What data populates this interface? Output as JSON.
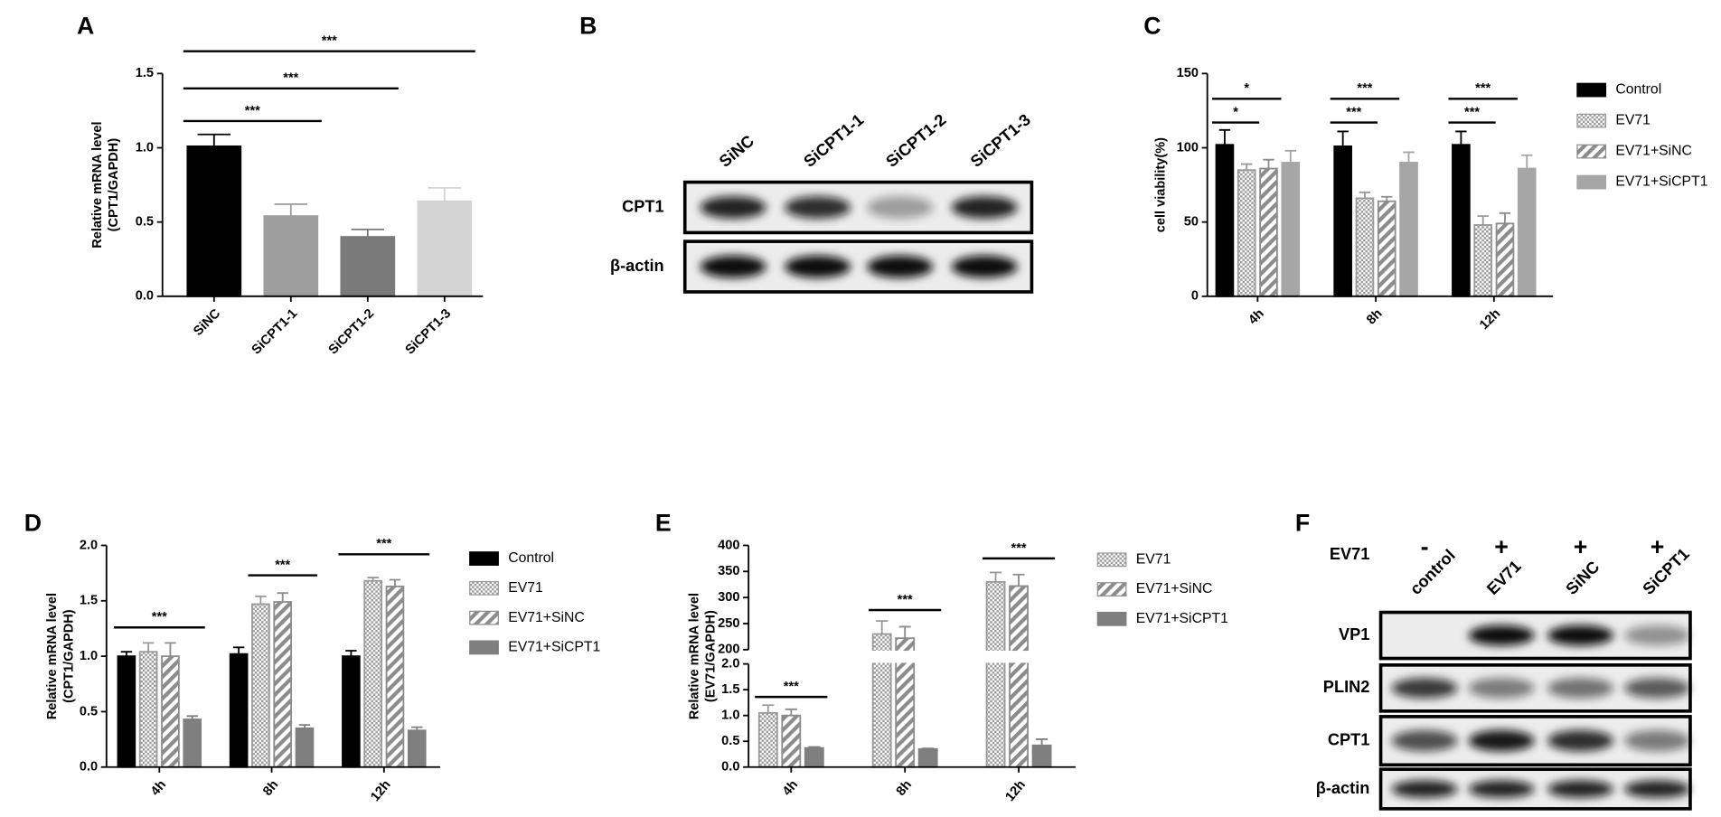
{
  "chart_data": [
    {
      "panel": "A",
      "type": "bar",
      "ylabel": [
        "Relative mRNA level",
        "(CPT1/GAPDH)"
      ],
      "categories": [
        "SiNC",
        "SiCPT1-1",
        "SiCPT1-2",
        "SiCPT1-3"
      ],
      "values": [
        1.01,
        0.54,
        0.4,
        0.64
      ],
      "errors": [
        0.08,
        0.08,
        0.05,
        0.09
      ],
      "colors": [
        "#000000",
        "#9e9e9e",
        "#7a7a7a",
        "#d4d4d4"
      ],
      "ylim": [
        0,
        1.5
      ],
      "yticks": [
        {
          "value": 0,
          "label": "0.0"
        },
        {
          "value": 0.5,
          "label": "0.5"
        },
        {
          "value": 1,
          "label": "1.0"
        },
        {
          "value": 1.5,
          "label": "1.5"
        }
      ],
      "annotations": [
        {
          "text": "***",
          "value": 1.18
        },
        {
          "text": "***",
          "value": 1.4
        },
        {
          "text": "***",
          "value": 1.65
        }
      ]
    },
    {
      "panel": "C",
      "type": "bar",
      "ylabel": [
        "cell viability(%)"
      ],
      "categories": [
        "4h",
        "8h",
        "12h"
      ],
      "series": [
        {
          "name": "Control",
          "color": "#000000",
          "pattern": "solid",
          "values": [
            102,
            101,
            102
          ],
          "errors": [
            10,
            10,
            9
          ]
        },
        {
          "name": "EV71",
          "color": "#9a9a9a",
          "pattern": "crosshatch",
          "values": [
            85,
            66,
            48
          ],
          "errors": [
            4,
            4,
            6
          ]
        },
        {
          "name": "EV71+SiNC",
          "color": "#8c8c8c",
          "pattern": "stripes",
          "values": [
            86,
            64,
            49
          ],
          "errors": [
            6,
            3,
            7
          ]
        },
        {
          "name": "EV71+SiCPT1",
          "color": "#a6a6a6",
          "pattern": "solid",
          "values": [
            90,
            90,
            86
          ],
          "errors": [
            8,
            7,
            9
          ]
        }
      ],
      "ylim": [
        0,
        150
      ],
      "yticks": [
        0,
        50,
        100,
        150
      ],
      "legend": "right",
      "annotations": [
        {
          "text": "*",
          "value": 117
        },
        {
          "text": "*",
          "value": 133
        },
        {
          "text": "***",
          "value": 117
        },
        {
          "text": "***",
          "value": 133
        },
        {
          "text": "***",
          "value": 117
        },
        {
          "text": "***",
          "value": 133
        }
      ]
    },
    {
      "panel": "D",
      "type": "bar",
      "ylabel": [
        "Relative mRNA level",
        "(CPT1/GAPDH)"
      ],
      "categories": [
        "4h",
        "8h",
        "12h"
      ],
      "series": [
        {
          "name": "Control",
          "color": "#000000",
          "pattern": "solid",
          "values": [
            1.0,
            1.02,
            1.0
          ],
          "errors": [
            0.04,
            0.06,
            0.05
          ]
        },
        {
          "name": "EV71",
          "color": "#9a9a9a",
          "pattern": "crosshatch",
          "values": [
            1.04,
            1.47,
            1.68
          ],
          "errors": [
            0.08,
            0.07,
            0.03
          ]
        },
        {
          "name": "EV71+SiNC",
          "color": "#8c8c8c",
          "pattern": "stripes",
          "values": [
            1.0,
            1.49,
            1.63
          ],
          "errors": [
            0.12,
            0.08,
            0.06
          ]
        },
        {
          "name": "EV71+SiCPT1",
          "color": "#7f7f7f",
          "pattern": "solid",
          "values": [
            0.43,
            0.35,
            0.33
          ],
          "errors": [
            0.03,
            0.03,
            0.03
          ]
        }
      ],
      "ylim": [
        0,
        2
      ],
      "yticks": [
        {
          "value": 0,
          "label": "0.0"
        },
        {
          "value": 0.5,
          "label": "0.5"
        },
        {
          "value": 1,
          "label": "1.0"
        },
        {
          "value": 1.5,
          "label": "1.5"
        },
        {
          "value": 2,
          "label": "2.0"
        }
      ],
      "legend": "right",
      "annotations": [
        {
          "text": "***",
          "value": 1.26
        },
        {
          "text": "***",
          "value": 1.73
        },
        {
          "text": "***",
          "value": 1.92
        }
      ]
    },
    {
      "panel": "E",
      "type": "bar",
      "ylabel": [
        "Relative mRNA level",
        "(EV71/GAPDH)"
      ],
      "categories": [
        "4h",
        "8h",
        "12h"
      ],
      "series": [
        {
          "name": "EV71",
          "color": "#9a9a9a",
          "pattern": "crosshatch",
          "values": [
            1.05,
            230,
            330
          ],
          "errors": [
            0.15,
            25,
            18
          ]
        },
        {
          "name": "EV71+SiNC",
          "color": "#8c8c8c",
          "pattern": "stripes",
          "values": [
            1.0,
            222,
            322
          ],
          "errors": [
            0.12,
            22,
            22
          ]
        },
        {
          "name": "EV71+SiCPT1",
          "color": "#7f7f7f",
          "pattern": "solid",
          "values": [
            0.37,
            0.35,
            0.42
          ],
          "errors": [
            0.02,
            0.01,
            0.12
          ]
        }
      ],
      "ylim": [
        0,
        400
      ],
      "ybreak": [
        2,
        200
      ],
      "yticks": [
        {
          "value": 0,
          "label": "0.0"
        },
        {
          "value": 0.5,
          "label": "0.5"
        },
        {
          "value": 1,
          "label": "1.0"
        },
        {
          "value": 1.5,
          "label": "1.5"
        },
        {
          "value": 2,
          "label": "2.0"
        },
        200,
        250,
        300,
        350,
        400
      ],
      "legend": "right",
      "annotations": [
        {
          "text": "***",
          "value": 1.36
        },
        {
          "text": "***",
          "value": 276
        },
        {
          "text": "***",
          "value": 375
        }
      ]
    }
  ],
  "blots": [
    {
      "panel": "B",
      "lanes": [
        "SiNC",
        "SiCPT1-1",
        "SiCPT1-2",
        "SiCPT1-3"
      ],
      "rows": [
        "CPT1",
        "β-actin"
      ]
    },
    {
      "panel": "F",
      "treatment": "EV71",
      "treatment_signs": [
        "-",
        "+",
        "+",
        "+"
      ],
      "lanes": [
        "control",
        "EV71",
        "SiNC",
        "SiCPT1"
      ],
      "rows": [
        "VP1",
        "PLIN2",
        "CPT1",
        "β-actin"
      ]
    }
  ]
}
